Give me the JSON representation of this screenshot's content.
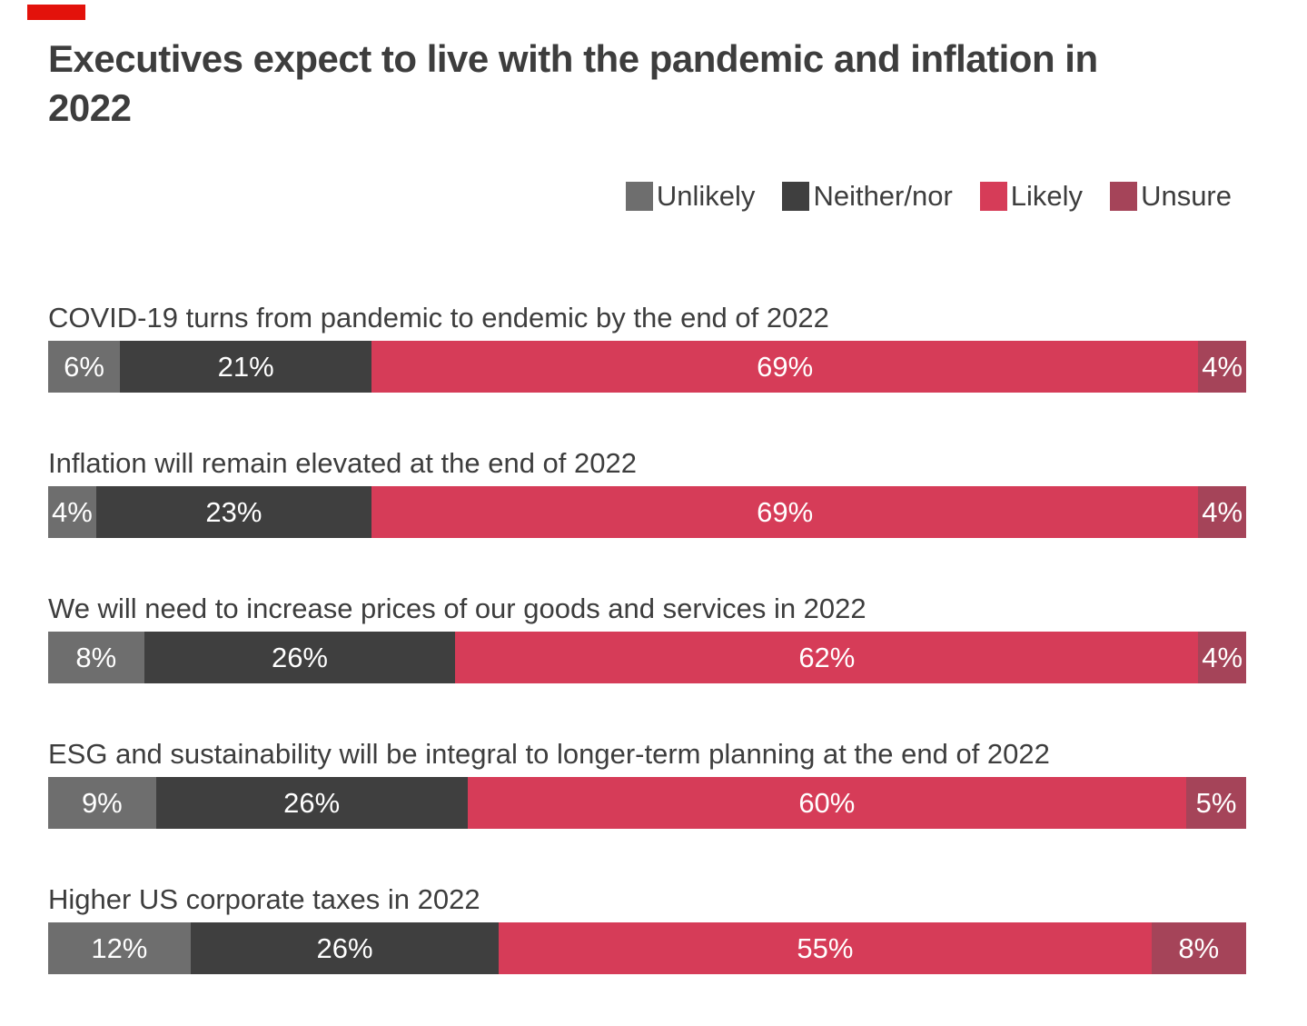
{
  "header": {
    "accent_tab_color": "#e3120b",
    "title": "Executives expect to live with the pandemic and inflation in 2022",
    "title_lines": [
      "Executives expect to live with the pandemic and inflation in",
      "2022"
    ]
  },
  "legend": {
    "position": "top-right",
    "items": [
      {
        "label": "Unlikely",
        "color": "#6e6e6e"
      },
      {
        "label": "Neither/nor",
        "color": "#3f3f3f"
      },
      {
        "label": "Likely",
        "color": "#d63c58"
      },
      {
        "label": "Unsure",
        "color": "#a54459"
      }
    ]
  },
  "chart_data": {
    "type": "bar",
    "stacked": true,
    "orientation": "horizontal",
    "unit": "percent",
    "title": "Executives expect to live with the pandemic and inflation in 2022",
    "legend_position": "top-right",
    "grid": false,
    "xlim": [
      0,
      100
    ],
    "background": "#ffffff",
    "categories": [
      "COVID-19 turns from pandemic to endemic by the end of 2022",
      "Inflation will remain elevated at the end of 2022",
      "We will need to increase prices of our goods and services in 2022",
      "ESG and sustainability will be integral to longer-term planning at the end of 2022",
      "Higher US corporate taxes in 2022"
    ],
    "series": [
      {
        "name": "Unlikely",
        "color": "#6e6e6e",
        "values": [
          6,
          4,
          8,
          9,
          12
        ]
      },
      {
        "name": "Neither/nor",
        "color": "#3f3f3f",
        "values": [
          21,
          23,
          26,
          26,
          26
        ]
      },
      {
        "name": "Likely",
        "color": "#d63c58",
        "values": [
          69,
          69,
          62,
          60,
          55
        ]
      },
      {
        "name": "Unsure",
        "color": "#a54459",
        "values": [
          4,
          4,
          4,
          5,
          8
        ]
      }
    ],
    "value_labels": [
      [
        "6%",
        "21%",
        "69%",
        "4%"
      ],
      [
        "4%",
        "23%",
        "69%",
        "4%"
      ],
      [
        "8%",
        "26%",
        "62%",
        "4%"
      ],
      [
        "9%",
        "26%",
        "60%",
        "5%"
      ],
      [
        "12%",
        "26%",
        "55%",
        "8%"
      ]
    ]
  }
}
